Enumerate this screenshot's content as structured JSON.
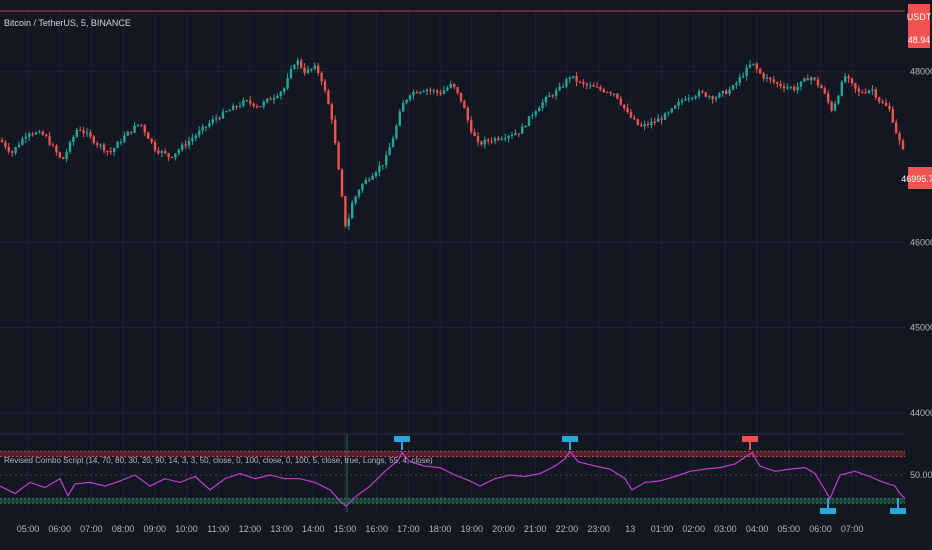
{
  "chart_data": [
    {
      "type": "candlestick",
      "title": "Bitcoin / TetherUS, 5, BINANCE",
      "y_axis_ticks": [
        "48000.00",
        "46000.00",
        "45000.00",
        "44000.00"
      ],
      "ylim": [
        43800,
        48700
      ],
      "x_axis_ticks": [
        "05:00",
        "06:00",
        "07:00",
        "08:00",
        "09:00",
        "10:00",
        "11:00",
        "12:00",
        "13:00",
        "14:00",
        "15:00",
        "16:00",
        "17:00",
        "18:00",
        "19:00",
        "20:00",
        "21:00",
        "22:00",
        "23:00",
        "13",
        "01:00",
        "02:00",
        "03:00",
        "04:00",
        "05:00",
        "06:00",
        "07:00"
      ],
      "y_axis_top_label": "USDT",
      "price_badge_top": "48.94",
      "current_price": "46995.72",
      "price_path": [
        [
          0,
          47200
        ],
        [
          12,
          47050
        ],
        [
          28,
          47300
        ],
        [
          45,
          47250
        ],
        [
          62,
          46950
        ],
        [
          78,
          47350
        ],
        [
          95,
          47180
        ],
        [
          110,
          47050
        ],
        [
          125,
          47250
        ],
        [
          140,
          47400
        ],
        [
          155,
          47100
        ],
        [
          170,
          47000
        ],
        [
          185,
          47150
        ],
        [
          200,
          47300
        ],
        [
          215,
          47450
        ],
        [
          230,
          47550
        ],
        [
          245,
          47650
        ],
        [
          260,
          47600
        ],
        [
          272,
          47700
        ],
        [
          284,
          47800
        ],
        [
          296,
          48150
        ],
        [
          305,
          48000
        ],
        [
          316,
          48050
        ],
        [
          322,
          47900
        ],
        [
          332,
          47450
        ],
        [
          340,
          46700
        ],
        [
          346,
          46150
        ],
        [
          352,
          46450
        ],
        [
          360,
          46650
        ],
        [
          372,
          46800
        ],
        [
          385,
          46950
        ],
        [
          395,
          47300
        ],
        [
          402,
          47600
        ],
        [
          410,
          47750
        ],
        [
          425,
          47800
        ],
        [
          440,
          47750
        ],
        [
          452,
          47850
        ],
        [
          462,
          47650
        ],
        [
          470,
          47350
        ],
        [
          478,
          47150
        ],
        [
          490,
          47200
        ],
        [
          505,
          47250
        ],
        [
          520,
          47300
        ],
        [
          535,
          47550
        ],
        [
          548,
          47700
        ],
        [
          560,
          47800
        ],
        [
          570,
          47950
        ],
        [
          582,
          47850
        ],
        [
          598,
          47800
        ],
        [
          615,
          47750
        ],
        [
          628,
          47500
        ],
        [
          640,
          47350
        ],
        [
          652,
          47400
        ],
        [
          668,
          47500
        ],
        [
          685,
          47700
        ],
        [
          700,
          47750
        ],
        [
          715,
          47700
        ],
        [
          732,
          47800
        ],
        [
          745,
          48000
        ],
        [
          752,
          48100
        ],
        [
          762,
          47950
        ],
        [
          778,
          47850
        ],
        [
          795,
          47800
        ],
        [
          810,
          47950
        ],
        [
          822,
          47800
        ],
        [
          832,
          47550
        ],
        [
          845,
          47950
        ],
        [
          858,
          47750
        ],
        [
          872,
          47800
        ],
        [
          880,
          47650
        ],
        [
          890,
          47550
        ],
        [
          896,
          47300
        ],
        [
          905,
          47000
        ]
      ]
    },
    {
      "type": "line",
      "title": "Revised Combo Script (14, 70, 80, 30, 20, 90, 14, 3, 3, 50, close, 0, 100, close, 0, 100, 5, close, true, Longs, 55, 4, close)",
      "y_axis_ticks": [
        "50.00"
      ],
      "ylim": [
        0,
        100
      ],
      "bands": {
        "upper": [
          75,
          82
        ],
        "lower": [
          12,
          18
        ]
      },
      "series_path": [
        [
          0,
          35
        ],
        [
          15,
          25
        ],
        [
          30,
          40
        ],
        [
          45,
          33
        ],
        [
          60,
          45
        ],
        [
          68,
          22
        ],
        [
          75,
          38
        ],
        [
          90,
          40
        ],
        [
          105,
          35
        ],
        [
          120,
          42
        ],
        [
          135,
          50
        ],
        [
          150,
          35
        ],
        [
          165,
          45
        ],
        [
          180,
          40
        ],
        [
          195,
          48
        ],
        [
          210,
          30
        ],
        [
          225,
          45
        ],
        [
          240,
          52
        ],
        [
          255,
          45
        ],
        [
          270,
          50
        ],
        [
          285,
          45
        ],
        [
          300,
          45
        ],
        [
          315,
          40
        ],
        [
          330,
          30
        ],
        [
          340,
          15
        ],
        [
          346,
          8
        ],
        [
          355,
          20
        ],
        [
          370,
          35
        ],
        [
          385,
          55
        ],
        [
          398,
          70
        ],
        [
          402,
          80
        ],
        [
          410,
          68
        ],
        [
          425,
          62
        ],
        [
          440,
          60
        ],
        [
          455,
          50
        ],
        [
          470,
          42
        ],
        [
          480,
          35
        ],
        [
          495,
          45
        ],
        [
          510,
          50
        ],
        [
          525,
          48
        ],
        [
          540,
          52
        ],
        [
          555,
          62
        ],
        [
          565,
          72
        ],
        [
          570,
          82
        ],
        [
          578,
          68
        ],
        [
          595,
          62
        ],
        [
          610,
          58
        ],
        [
          625,
          45
        ],
        [
          632,
          30
        ],
        [
          645,
          40
        ],
        [
          660,
          42
        ],
        [
          675,
          48
        ],
        [
          690,
          55
        ],
        [
          705,
          58
        ],
        [
          720,
          60
        ],
        [
          735,
          65
        ],
        [
          746,
          75
        ],
        [
          752,
          80
        ],
        [
          760,
          62
        ],
        [
          775,
          55
        ],
        [
          790,
          58
        ],
        [
          805,
          60
        ],
        [
          815,
          52
        ],
        [
          825,
          30
        ],
        [
          830,
          18
        ],
        [
          840,
          50
        ],
        [
          855,
          55
        ],
        [
          870,
          48
        ],
        [
          880,
          42
        ],
        [
          895,
          35
        ],
        [
          900,
          25
        ],
        [
          905,
          18
        ]
      ],
      "signals": [
        {
          "x": 402,
          "type": "top",
          "color": "#2aa7d9"
        },
        {
          "x": 570,
          "type": "top",
          "color": "#2aa7d9"
        },
        {
          "x": 750,
          "type": "top",
          "color": "#f05350"
        },
        {
          "x": 828,
          "type": "bottom",
          "color": "#2aa7d9"
        },
        {
          "x": 898,
          "type": "bottom",
          "color": "#2aa7d9"
        }
      ]
    }
  ],
  "colors": {
    "up": "#26a69a",
    "down": "#ef5350",
    "rsi_line": "#c23bd4",
    "band_red": "#8a2c33",
    "band_green": "#1f6b3a",
    "badge_red": "#f05350"
  }
}
